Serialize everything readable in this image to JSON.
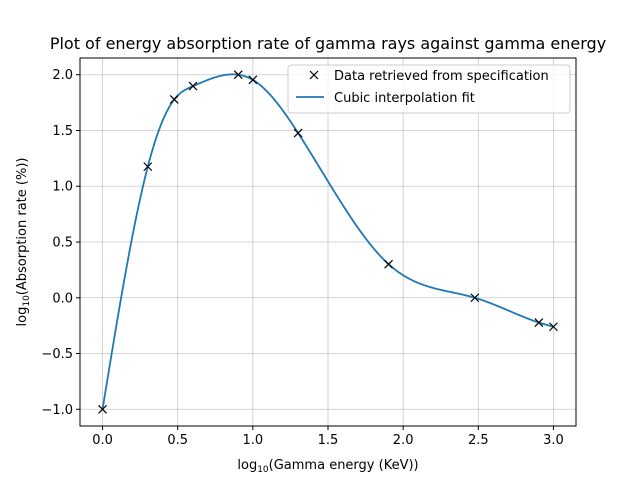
{
  "chart_data": {
    "type": "line",
    "title": "Plot of energy absorption rate of gamma rays against gamma energy",
    "xlabel": {
      "prefix": "log",
      "sub": "10",
      "suffix": "(Gamma energy (KeV))"
    },
    "ylabel": {
      "prefix": "log",
      "sub": "10",
      "suffix": "(Absorption rate (%))"
    },
    "xlim": [
      -0.15,
      3.15
    ],
    "ylim": [
      -1.15,
      2.15
    ],
    "xticks": [
      0.0,
      0.5,
      1.0,
      1.5,
      2.0,
      2.5,
      3.0
    ],
    "xtick_labels": [
      "0.0",
      "0.5",
      "1.0",
      "1.5",
      "2.0",
      "2.5",
      "3.0"
    ],
    "yticks": [
      -1.0,
      -0.5,
      0.0,
      0.5,
      1.0,
      1.5,
      2.0
    ],
    "ytick_labels": [
      "−1.0",
      "−0.5",
      "0.0",
      "0.5",
      "1.0",
      "1.5",
      "2.0"
    ],
    "grid": true,
    "legend_position": "top-right",
    "series": [
      {
        "name": "Data retrieved from specification",
        "kind": "markers",
        "marker": "x",
        "color": "#000000",
        "x": [
          0.0,
          0.301,
          0.477,
          0.602,
          0.903,
          1.0,
          1.301,
          1.903,
          2.477,
          2.903,
          3.0
        ],
        "y": [
          -1.0,
          1.176,
          1.778,
          1.898,
          2.0,
          1.954,
          1.477,
          0.301,
          0.0,
          -0.222,
          -0.26
        ]
      },
      {
        "name": "Cubic interpolation fit",
        "kind": "line",
        "color": "#1f77b4"
      }
    ]
  }
}
